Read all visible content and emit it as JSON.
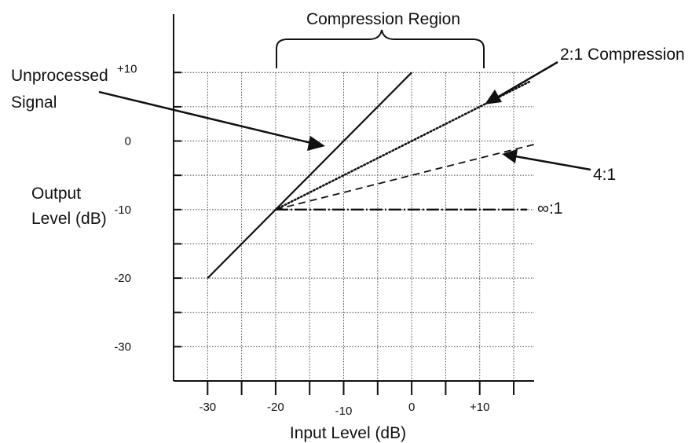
{
  "chart_data": {
    "type": "line",
    "xlabel": "Input Level (dB)",
    "ylabel": [
      "Output",
      "Level (dB)"
    ],
    "x_ticks": [
      {
        "value": -30,
        "label": "-30"
      },
      {
        "value": -20,
        "label": "-20"
      },
      {
        "value": -10,
        "label": "-10"
      },
      {
        "value": 0,
        "label": "0"
      },
      {
        "value": 10,
        "label": "+10"
      }
    ],
    "y_ticks": [
      {
        "value": 10,
        "label": "+10"
      },
      {
        "value": 0,
        "label": "0"
      },
      {
        "value": -10,
        "label": "-10"
      },
      {
        "value": -20,
        "label": "-20"
      },
      {
        "value": -30,
        "label": "-30"
      }
    ],
    "xlim": [
      -35,
      18
    ],
    "ylim": [
      -35,
      20
    ],
    "grid": true,
    "grid_step": 5,
    "threshold": -20,
    "series": [
      {
        "name": "Unprocessed Signal",
        "style": "solid",
        "x": [
          -30,
          0
        ],
        "y": [
          -20,
          10
        ]
      },
      {
        "name": "2:1 Compression",
        "style": "dotted",
        "x": [
          -20,
          17.5
        ],
        "y": [
          -10,
          8.75
        ]
      },
      {
        "name": "4:1",
        "style": "dashed",
        "x": [
          -20,
          18
        ],
        "y": [
          -10,
          -0.5
        ]
      },
      {
        "name": "∞:1",
        "style": "dashdot",
        "x": [
          -20,
          17
        ],
        "y": [
          -10,
          -10
        ]
      }
    ],
    "annotations": {
      "region": {
        "label": "Compression Region",
        "x_start": -20,
        "x_end": 10
      },
      "unprocessed": [
        "Unprocessed",
        "Signal"
      ],
      "ratio_2_1": "2:1 Compression",
      "ratio_4_1": "4:1",
      "ratio_inf": "∞:1"
    }
  }
}
